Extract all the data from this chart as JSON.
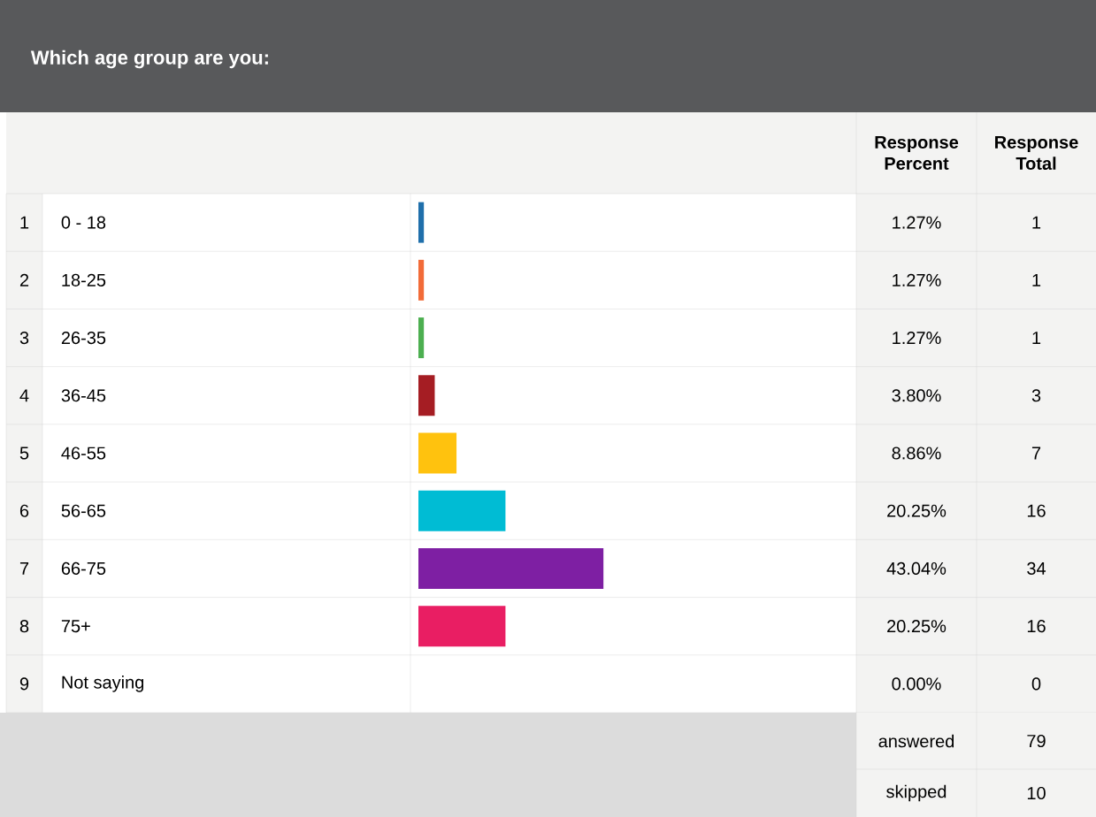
{
  "chart_data": {
    "type": "bar",
    "orientation": "horizontal",
    "title": "Which age group are you:",
    "categories": [
      "0 - 18",
      "18-25",
      "26-35",
      "36-45",
      "46-55",
      "56-65",
      "66-75",
      "75+",
      "Not saying"
    ],
    "values": [
      1.27,
      1.27,
      1.27,
      3.8,
      8.86,
      20.25,
      43.04,
      20.25,
      0.0
    ],
    "value_labels": [
      "1.27%",
      "1.27%",
      "1.27%",
      "3.80%",
      "8.86%",
      "20.25%",
      "43.04%",
      "20.25%",
      "0.00%"
    ],
    "colors": [
      "#1f6fab",
      "#f26b38",
      "#4caf50",
      "#a51d23",
      "#ffc20e",
      "#00bcd4",
      "#7e1fa3",
      "#e91e63",
      "#999999"
    ],
    "tick_labels": false,
    "annotations": [
      "Response Percent",
      "Response Total",
      "1",
      "2",
      "3",
      "4",
      "5",
      "6",
      "7",
      "8",
      "9",
      "1",
      "1",
      "1",
      "3",
      "7",
      "16",
      "34",
      "16",
      "0",
      "answered",
      "79",
      "skipped",
      "10"
    ]
  }
}
